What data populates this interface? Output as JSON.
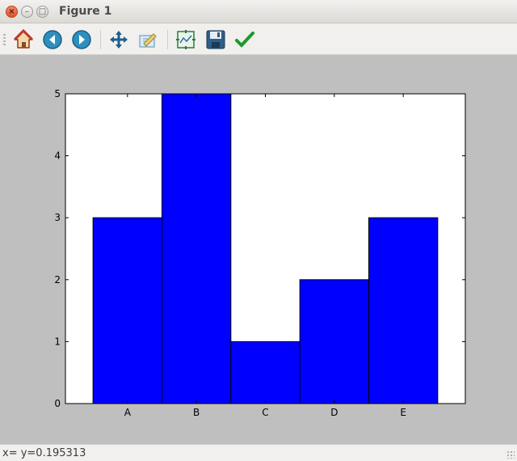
{
  "window": {
    "title": "Figure 1",
    "controls": {
      "close": "×",
      "minimize": "–",
      "maximize": "□"
    }
  },
  "toolbar": {
    "buttons": [
      {
        "name": "home",
        "icon": "home-icon"
      },
      {
        "name": "back",
        "icon": "arrow-left-icon"
      },
      {
        "name": "forward",
        "icon": "arrow-right-icon"
      },
      {
        "name": "pan",
        "icon": "move-arrows-icon"
      },
      {
        "name": "zoom",
        "icon": "zoom-rect-icon"
      },
      {
        "name": "subplots",
        "icon": "configure-subplots-icon"
      },
      {
        "name": "save",
        "icon": "floppy-disk-icon"
      },
      {
        "name": "edit",
        "icon": "checkmark-icon"
      }
    ]
  },
  "status": {
    "text": "x= y=0.195313"
  },
  "chart_data": {
    "type": "bar",
    "categories": [
      "A",
      "B",
      "C",
      "D",
      "E"
    ],
    "values": [
      3,
      5,
      1,
      2,
      3
    ],
    "title": "",
    "xlabel": "",
    "ylabel": "",
    "ylim": [
      0,
      5
    ],
    "yticks": [
      0,
      1,
      2,
      3,
      4,
      5
    ],
    "grid": false,
    "bar_color": "#0000ff",
    "edge_color": "#000000",
    "axes_background": "#ffffff",
    "figure_background": "#bfbfbf"
  }
}
